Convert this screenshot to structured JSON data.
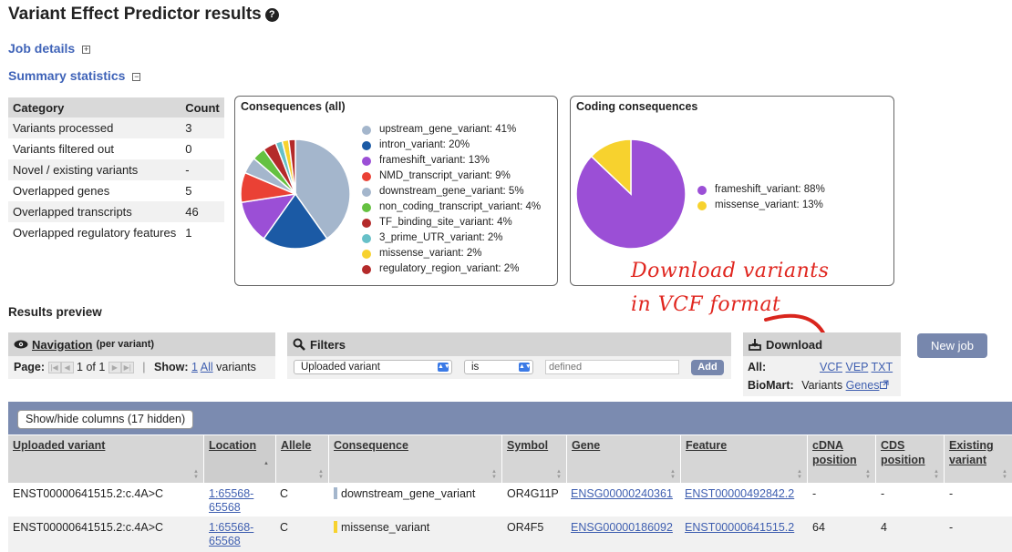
{
  "page": {
    "title": "Variant Effect Predictor results"
  },
  "sections": {
    "job_details": "Job details",
    "summary_statistics": "Summary statistics",
    "results_preview": "Results preview"
  },
  "stats_table": {
    "headers": [
      "Category",
      "Count"
    ],
    "rows": [
      [
        "Variants processed",
        "3"
      ],
      [
        "Variants filtered out",
        "0"
      ],
      [
        "Novel / existing variants",
        "-"
      ],
      [
        "Overlapped genes",
        "5"
      ],
      [
        "Overlapped transcripts",
        "46"
      ],
      [
        "Overlapped regulatory features",
        "1"
      ]
    ]
  },
  "chart_data": [
    {
      "type": "pie",
      "title": "Consequences (all)",
      "labels": [
        "upstream_gene_variant",
        "intron_variant",
        "frameshift_variant",
        "NMD_transcript_variant",
        "downstream_gene_variant",
        "non_coding_transcript_variant",
        "TF_binding_site_variant",
        "3_prime_UTR_variant",
        "missense_variant",
        "regulatory_region_variant"
      ],
      "values": [
        41,
        20,
        13,
        9,
        5,
        4,
        4,
        2,
        2,
        2
      ],
      "colors": [
        "#a4b6cc",
        "#1b5aa5",
        "#9b4fd6",
        "#ea4135",
        "#a4b6cc",
        "#65c141",
        "#b42a2a",
        "#67c0c8",
        "#f7d22e",
        "#b42a2a"
      ],
      "legend_entries": [
        "upstream_gene_variant: 41%",
        "intron_variant: 20%",
        "frameshift_variant: 13%",
        "NMD_transcript_variant: 9%",
        "downstream_gene_variant: 5%",
        "non_coding_transcript_variant: 4%",
        "TF_binding_site_variant: 4%",
        "3_prime_UTR_variant: 2%",
        "missense_variant: 2%",
        "regulatory_region_variant: 2%"
      ]
    },
    {
      "type": "pie",
      "title": "Coding consequences",
      "labels": [
        "frameshift_variant",
        "missense_variant"
      ],
      "values": [
        88,
        13
      ],
      "colors": [
        "#9b4fd6",
        "#f7d22e"
      ],
      "legend_entries": [
        "frameshift_variant: 88%",
        "missense_variant: 13%"
      ]
    }
  ],
  "annotation": {
    "line1": "Download variants",
    "line2": "in VCF format"
  },
  "navigation": {
    "title": "Navigation",
    "subtitle": "(per variant)",
    "page_label": "Page:",
    "page_status": "1 of 1",
    "show_label": "Show:",
    "show_1": "1",
    "show_all": "All",
    "show_suffix": "variants"
  },
  "filters": {
    "title": "Filters",
    "field": "Uploaded variant",
    "operator": "is",
    "value_placeholder": "defined",
    "add_label": "Add"
  },
  "download": {
    "title": "Download",
    "all_label": "All:",
    "vcf": "VCF",
    "vep": "VEP",
    "txt": "TXT",
    "biomart_label": "BioMart:",
    "variants_label": "Variants",
    "genes_label": "Genes"
  },
  "new_job_label": "New job",
  "results": {
    "show_hide_label": "Show/hide columns (17 hidden)",
    "columns": [
      "Uploaded variant",
      "Location",
      "Allele",
      "Consequence",
      "Symbol",
      "Gene",
      "Feature",
      "cDNA position",
      "CDS position",
      "Existing variant"
    ],
    "rows": [
      {
        "uploaded_variant": "ENST00000641515.2:c.4A>C",
        "location_1": "1:65568-",
        "location_2": "65568",
        "allele": "C",
        "consequence": "downstream_gene_variant",
        "consequence_color": "#a4b6cc",
        "symbol": "OR4G11P",
        "gene": "ENSG00000240361",
        "feature": "ENST00000492842.2",
        "cdna": "-",
        "cds": "-",
        "existing": "-"
      },
      {
        "uploaded_variant": "ENST00000641515.2:c.4A>C",
        "location_1": "1:65568-",
        "location_2": "65568",
        "allele": "C",
        "consequence": "missense_variant",
        "consequence_color": "#f7d22e",
        "symbol": "OR4F5",
        "gene": "ENSG00000186092",
        "feature": "ENST00000641515.2",
        "cdna": "64",
        "cds": "4",
        "existing": "-"
      }
    ]
  }
}
